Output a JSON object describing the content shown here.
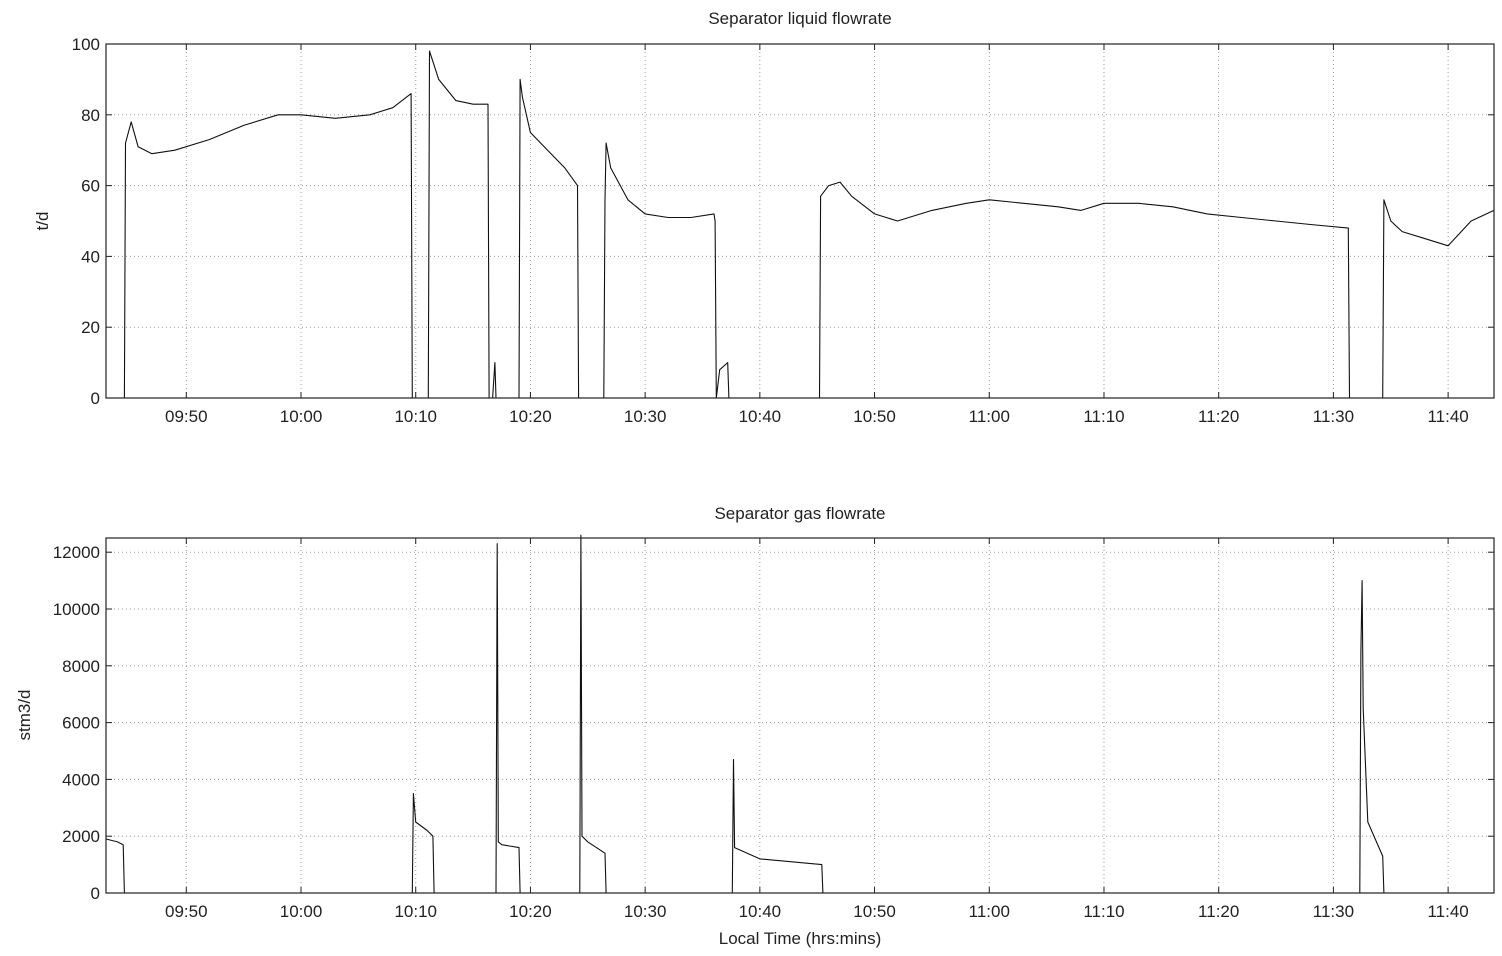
{
  "chart_data": [
    {
      "type": "line",
      "title": "Separator liquid flowrate",
      "xlabel": "",
      "ylabel": "t/d",
      "xlim": [
        "09:43",
        "11:44"
      ],
      "ylim": [
        0,
        100
      ],
      "yticks": [
        0,
        20,
        40,
        60,
        80,
        100
      ],
      "xticks": [
        "09:50",
        "10:00",
        "10:10",
        "10:20",
        "10:30",
        "10:40",
        "10:50",
        "11:00",
        "11:10",
        "11:20",
        "11:30",
        "11:40"
      ],
      "grid": true,
      "series": [
        {
          "color": "#111111",
          "x": [
            "09:44.6",
            "09:44.7",
            "09:45.2",
            "09:45.8",
            "09:47",
            "09:49",
            "09:52",
            "09:55",
            "09:58",
            "10:00",
            "10:03",
            "10:06",
            "10:08",
            "10:09.6",
            "10:09.7",
            "10:11.1",
            "10:11.2",
            "10:12",
            "10:13.5",
            "10:15",
            "10:16.3",
            "10:16.4",
            "10:16.7",
            "10:16.9",
            "10:17.0",
            "10:19.0",
            "10:19.1",
            "10:19.3",
            "10:20",
            "10:21.5",
            "10:23",
            "10:24.1",
            "10:24.2",
            "10:26.4",
            "10:26.5",
            "10:26.6",
            "10:27",
            "10:28.5",
            "10:30",
            "10:32",
            "10:34",
            "10:36",
            "10:36.1",
            "10:36.2",
            "10:36.5",
            "10:37.2",
            "10:37.3",
            "10:45.2",
            "10:45.3",
            "10:46",
            "10:47",
            "10:48",
            "10:50",
            "10:52",
            "10:55",
            "10:58",
            "11:00",
            "11:03",
            "11:06",
            "11:08",
            "11:10",
            "11:13",
            "11:16",
            "11:19",
            "11:22",
            "11:25",
            "11:28",
            "11:31.3",
            "11:31.4",
            "11:34.3",
            "11:34.4",
            "11:35",
            "11:36",
            "11:38",
            "11:40",
            "11:42",
            "11:44"
          ],
          "y": [
            0,
            72,
            78,
            71,
            69,
            70,
            73,
            77,
            80,
            80,
            79,
            80,
            82,
            86,
            0,
            0,
            98,
            90,
            84,
            83,
            83,
            0,
            0,
            10,
            0,
            0,
            90,
            85,
            75,
            70,
            65,
            60,
            0,
            0,
            56,
            72,
            65,
            56,
            52,
            51,
            51,
            52,
            50,
            0,
            8,
            10,
            0,
            0,
            57,
            60,
            61,
            57,
            52,
            50,
            53,
            55,
            56,
            55,
            54,
            53,
            55,
            55,
            54,
            52,
            51,
            50,
            49,
            48,
            0,
            0,
            56,
            50,
            47,
            45,
            43,
            50,
            53
          ]
        }
      ]
    },
    {
      "type": "line",
      "title": "Separator gas flowrate",
      "xlabel": "Local Time (hrs:mins)",
      "ylabel": "stm3/d",
      "xlim": [
        "09:43",
        "11:44"
      ],
      "ylim": [
        0,
        12500
      ],
      "yticks": [
        0,
        2000,
        4000,
        6000,
        8000,
        10000,
        12000
      ],
      "xticks": [
        "09:50",
        "10:00",
        "10:10",
        "10:20",
        "10:30",
        "10:40",
        "10:50",
        "11:00",
        "11:10",
        "11:20",
        "11:30",
        "11:40"
      ],
      "grid": true,
      "series": [
        {
          "color": "#111111",
          "x": [
            "09:43",
            "09:44",
            "09:44.5",
            "09:44.6",
            "10:09.7",
            "10:09.8",
            "10:10",
            "10:11",
            "10:11.5",
            "10:11.6",
            "10:17",
            "10:17.1",
            "10:17.2",
            "10:17.5",
            "10:19",
            "10:19.1",
            "10:24.3",
            "10:24.4",
            "10:24.5",
            "10:25",
            "10:26.5",
            "10:26.6",
            "10:37.6",
            "10:37.7",
            "10:37.8",
            "10:40",
            "10:45.4",
            "10:45.5",
            "11:32.3",
            "11:32.4",
            "11:32.5",
            "11:32.6",
            "11:33",
            "11:34.3",
            "11:34.4",
            "11:44"
          ],
          "y": [
            1900,
            1800,
            1700,
            0,
            0,
            3500,
            2500,
            2200,
            2000,
            0,
            0,
            12300,
            1800,
            1700,
            1600,
            0,
            0,
            12600,
            2000,
            1800,
            1400,
            0,
            0,
            4700,
            1600,
            1200,
            1000,
            0,
            0,
            8500,
            11000,
            6500,
            2500,
            1300,
            0,
            0
          ]
        }
      ]
    }
  ]
}
